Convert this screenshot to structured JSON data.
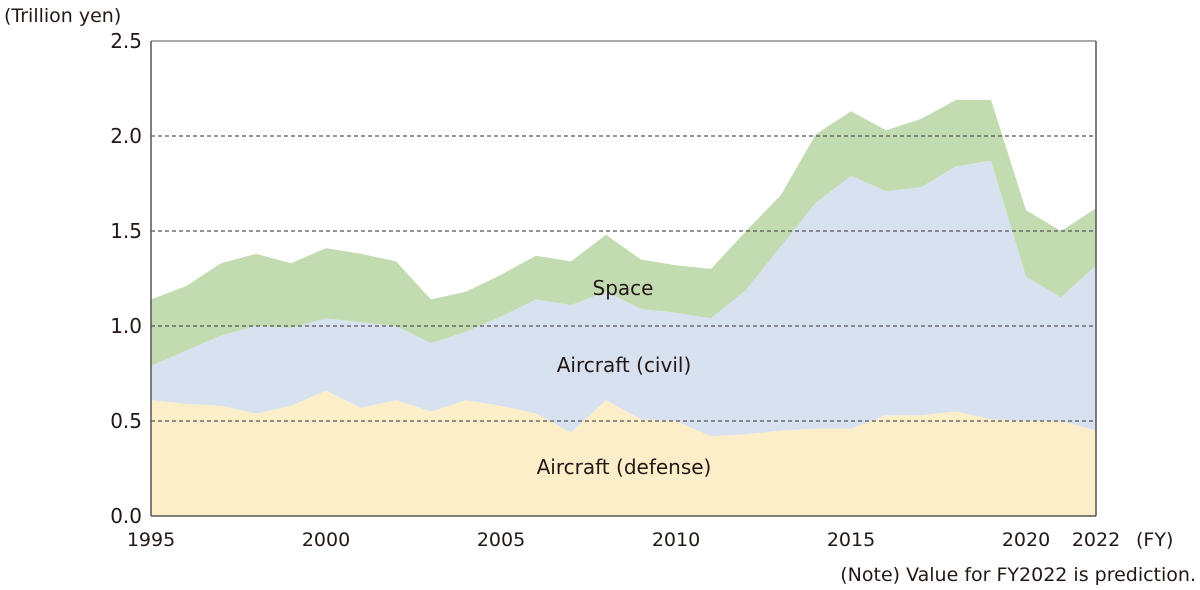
{
  "chart_data": {
    "type": "area",
    "stacked": true,
    "ylabel": "(Trillion yen)",
    "xlabel": "(FY)",
    "note": "(Note) Value for FY2022 is prediction.",
    "ylim": [
      0,
      2.5
    ],
    "yticks": [
      "0.0",
      "0.5",
      "1.0",
      "1.5",
      "2.0",
      "2.5"
    ],
    "xticks": [
      "1995",
      "2000",
      "2005",
      "2010",
      "2015",
      "2020",
      "2022"
    ],
    "grid": "horizontal dashed",
    "x": [
      1995,
      1996,
      1997,
      1998,
      1999,
      2000,
      2001,
      2002,
      2003,
      2004,
      2005,
      2006,
      2007,
      2008,
      2009,
      2010,
      2011,
      2012,
      2013,
      2014,
      2015,
      2016,
      2017,
      2018,
      2019,
      2020,
      2021,
      2022
    ],
    "series": [
      {
        "name": "Aircraft (defense)",
        "color": "#fbeec9",
        "values": [
          0.61,
          0.59,
          0.58,
          0.54,
          0.58,
          0.66,
          0.57,
          0.61,
          0.55,
          0.61,
          0.58,
          0.54,
          0.44,
          0.61,
          0.51,
          0.5,
          0.42,
          0.43,
          0.45,
          0.46,
          0.46,
          0.53,
          0.53,
          0.55,
          0.51,
          0.5,
          0.5,
          0.45
        ]
      },
      {
        "name": "Aircraft (civil)",
        "color": "#d8e1f0",
        "values": [
          0.18,
          0.28,
          0.37,
          0.46,
          0.41,
          0.38,
          0.45,
          0.39,
          0.36,
          0.36,
          0.47,
          0.6,
          0.67,
          0.57,
          0.58,
          0.57,
          0.62,
          0.76,
          0.97,
          1.19,
          1.33,
          1.18,
          1.2,
          1.29,
          1.36,
          0.76,
          0.65,
          0.87
        ]
      },
      {
        "name": "Space",
        "color": "#c3dbb0",
        "values": [
          0.35,
          0.34,
          0.38,
          0.38,
          0.34,
          0.37,
          0.36,
          0.34,
          0.23,
          0.21,
          0.22,
          0.23,
          0.23,
          0.3,
          0.26,
          0.25,
          0.26,
          0.31,
          0.27,
          0.36,
          0.34,
          0.32,
          0.36,
          0.35,
          0.32,
          0.35,
          0.35,
          0.3
        ]
      }
    ]
  }
}
